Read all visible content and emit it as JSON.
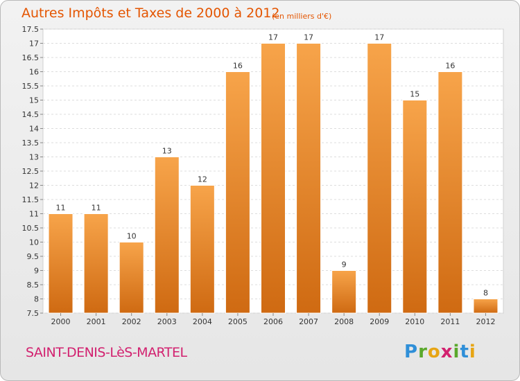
{
  "header": {
    "title": "Autres Impôts et Taxes de 2000 à 2012",
    "subtitle": "(en milliers d'€)"
  },
  "footer": {
    "commune": "SAINT-DENIS-LèS-MARTEL",
    "logo_letters": [
      {
        "ch": "P",
        "color": "#2f8fd8"
      },
      {
        "ch": "r",
        "color": "#5aa82c"
      },
      {
        "ch": "o",
        "color": "#e7a514"
      },
      {
        "ch": "x",
        "color": "#d2216f"
      },
      {
        "ch": "i",
        "color": "#5aa82c"
      },
      {
        "ch": "t",
        "color": "#2f8fd8"
      },
      {
        "ch": "i",
        "color": "#e7a514"
      }
    ]
  },
  "chart_data": {
    "type": "bar",
    "title": "Autres Impôts et Taxes de 2000 à 2012",
    "subtitle": "(en milliers d'€)",
    "categories": [
      "2000",
      "2001",
      "2002",
      "2003",
      "2004",
      "2005",
      "2006",
      "2007",
      "2008",
      "2009",
      "2010",
      "2011",
      "2012"
    ],
    "values": [
      11,
      11,
      10,
      13,
      12,
      16,
      17,
      17,
      9,
      17,
      15,
      16,
      8
    ],
    "ylim": [
      7.5,
      17.5
    ],
    "yticks": [
      "7.5",
      "8",
      "8.5",
      "9",
      "9.5",
      "10",
      "10.5",
      "11",
      "11.5",
      "12",
      "12.5",
      "13",
      "13.5",
      "14",
      "14.5",
      "15",
      "15.5",
      "16",
      "16.5",
      "17",
      "17.5"
    ],
    "grid": true,
    "bar_color": "#f39a3b",
    "bar_color_dark": "#d06c10"
  }
}
